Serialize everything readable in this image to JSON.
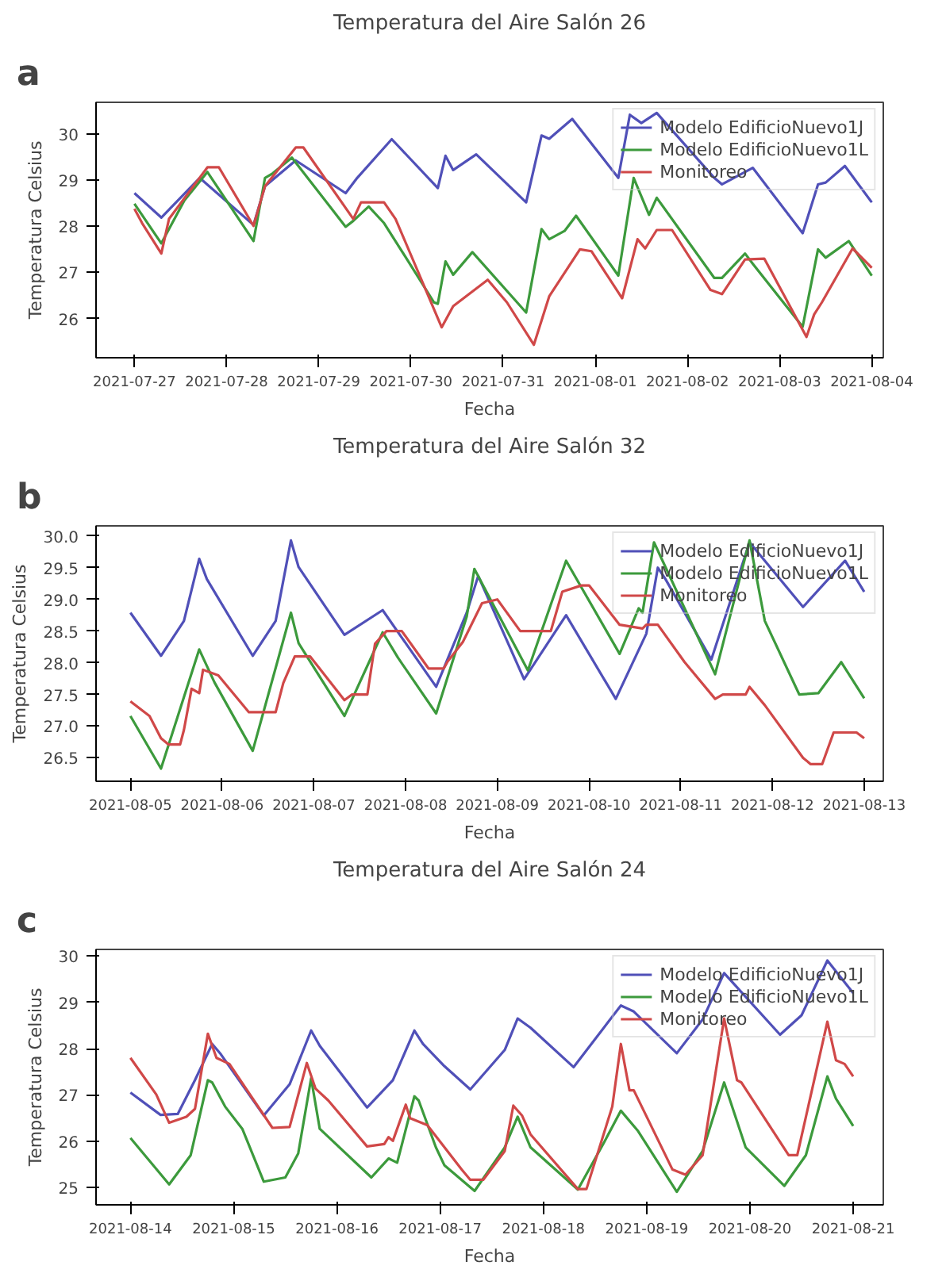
{
  "chart_data": [
    {
      "type": "line",
      "title": "Temperatura del Aire Salón 26",
      "xlabel": "Fecha",
      "ylabel": "Temperatura Celsius",
      "annotations": [
        "a"
      ],
      "legend": "top right",
      "grid": false,
      "xlim": [
        "2021-07-26T14:00",
        "2021-08-04T03:00"
      ],
      "xticks": [
        "2021-07-27",
        "2021-07-28",
        "2021-07-29",
        "2021-07-30",
        "2021-07-31",
        "2021-08-01",
        "2021-08-02",
        "2021-08-03",
        "2021-08-04"
      ],
      "ylim": [
        25.15,
        30.69
      ],
      "yticks": [
        26,
        27,
        28,
        29,
        30
      ],
      "series": [
        {
          "name": "Modelo EdificioNuevo1J",
          "color": "#5050b8",
          "x": [
            "2021-07-27T00:00",
            "2021-07-27T07:00",
            "2021-07-27T17:00",
            "2021-07-28T07:00",
            "2021-07-28T10:00",
            "2021-07-28T18:00",
            "2021-07-29T07:00",
            "2021-07-29T10:00",
            "2021-07-29T19:00",
            "2021-07-30T07:00",
            "2021-07-30T09:00",
            "2021-07-30T11:00",
            "2021-07-30T17:00",
            "2021-07-31T06:00",
            "2021-07-31T10:00",
            "2021-07-31T12:00",
            "2021-07-31T18:00",
            "2021-08-01T06:00",
            "2021-08-01T09:00",
            "2021-08-01T12:00",
            "2021-08-01T16:00",
            "2021-08-02T07:00",
            "2021-08-02T09:00",
            "2021-08-02T17:00",
            "2021-08-03T06:00",
            "2021-08-03T10:00",
            "2021-08-03T12:00",
            "2021-08-03T17:00",
            "2021-08-04T00:00"
          ],
          "values": [
            28.72,
            28.19,
            29.05,
            28.03,
            28.87,
            29.43,
            28.72,
            29.05,
            29.89,
            28.83,
            29.53,
            29.22,
            29.56,
            28.52,
            29.97,
            29.9,
            30.33,
            29.05,
            30.42,
            30.24,
            30.46,
            29.05,
            28.91,
            29.27,
            27.85,
            28.91,
            28.95,
            29.31,
            28.52
          ]
        },
        {
          "name": "Modelo EdificioNuevo1L",
          "color": "#3c9a3c",
          "x": [
            "2021-07-27T00:00",
            "2021-07-27T07:00",
            "2021-07-27T13:00",
            "2021-07-27T19:00",
            "2021-07-28T07:00",
            "2021-07-28T10:00",
            "2021-07-28T12:00",
            "2021-07-28T17:00",
            "2021-07-29T07:00",
            "2021-07-29T09:00",
            "2021-07-29T13:00",
            "2021-07-29T17:00",
            "2021-07-29T23:00",
            "2021-07-30T06:00",
            "2021-07-30T07:00",
            "2021-07-30T09:00",
            "2021-07-30T11:00",
            "2021-07-30T16:00",
            "2021-07-31T06:00",
            "2021-07-31T10:00",
            "2021-07-31T12:00",
            "2021-07-31T16:00",
            "2021-07-31T19:00",
            "2021-08-01T06:00",
            "2021-08-01T10:00",
            "2021-08-01T14:00",
            "2021-08-01T16:00",
            "2021-08-02T07:00",
            "2021-08-02T09:00",
            "2021-08-02T15:00",
            "2021-08-02T17:00",
            "2021-08-03T06:00",
            "2021-08-03T10:00",
            "2021-08-03T12:00",
            "2021-08-03T18:00",
            "2021-08-04T00:00"
          ],
          "values": [
            28.49,
            27.63,
            28.56,
            29.18,
            27.68,
            29.05,
            29.15,
            29.49,
            27.99,
            28.12,
            28.43,
            28.07,
            27.28,
            26.35,
            26.32,
            27.24,
            26.95,
            27.44,
            26.13,
            27.94,
            27.72,
            27.9,
            28.23,
            26.93,
            29.05,
            28.25,
            28.62,
            26.88,
            26.88,
            27.41,
            27.19,
            25.82,
            27.5,
            27.32,
            27.68,
            26.93
          ]
        },
        {
          "name": "Monitoreo",
          "color": "#d04848",
          "x": [
            "2021-07-27T00:00",
            "2021-07-27T02:00",
            "2021-07-27T07:00",
            "2021-07-27T09:00",
            "2021-07-27T19:00",
            "2021-07-27T22:00",
            "2021-07-28T07:00",
            "2021-07-28T10:00",
            "2021-07-28T18:00",
            "2021-07-28T20:00",
            "2021-07-29T09:00",
            "2021-07-29T11:00",
            "2021-07-29T17:00",
            "2021-07-29T20:00",
            "2021-07-30T08:00",
            "2021-07-30T11:00",
            "2021-07-30T20:00",
            "2021-07-31T01:00",
            "2021-07-31T08:00",
            "2021-07-31T12:00",
            "2021-07-31T20:00",
            "2021-07-31T23:00",
            "2021-08-01T07:00",
            "2021-08-01T11:00",
            "2021-08-01T13:00",
            "2021-08-01T16:00",
            "2021-08-01T20:00",
            "2021-08-02T06:00",
            "2021-08-02T09:00",
            "2021-08-02T15:00",
            "2021-08-02T20:00",
            "2021-08-03T07:00",
            "2021-08-03T09:00",
            "2021-08-03T11:00",
            "2021-08-03T19:00",
            "2021-08-04T00:00"
          ],
          "values": [
            28.38,
            28.07,
            27.41,
            28.16,
            29.28,
            29.28,
            28.01,
            28.87,
            29.71,
            29.71,
            28.16,
            28.52,
            28.52,
            28.16,
            25.81,
            26.27,
            26.84,
            26.35,
            25.43,
            26.48,
            27.5,
            27.46,
            26.44,
            27.72,
            27.52,
            27.92,
            27.92,
            26.62,
            26.53,
            27.28,
            27.3,
            25.6,
            26.09,
            26.35,
            27.52,
            27.1
          ]
        }
      ]
    },
    {
      "type": "line",
      "title": "Temperatura del Aire Salón 32",
      "xlabel": "Fecha",
      "ylabel": "Temperatura Celsius",
      "annotations": [
        "b"
      ],
      "legend": "top right",
      "grid": false,
      "xlim": [
        "2021-08-04T15:00",
        "2021-08-13T05:00"
      ],
      "xticks": [
        "2021-08-05",
        "2021-08-06",
        "2021-08-07",
        "2021-08-08",
        "2021-08-09",
        "2021-08-10",
        "2021-08-11",
        "2021-08-12",
        "2021-08-13"
      ],
      "ylim": [
        26.13,
        30.16
      ],
      "yticks": [
        26.5,
        {
          "value": 27,
          "label": "27.0"
        },
        27.5,
        {
          "value": 28,
          "label": "28.0"
        },
        28.5,
        {
          "value": 29,
          "label": "29.0"
        },
        29.5,
        {
          "value": 30,
          "label": "30.0"
        }
      ],
      "series": [
        {
          "name": "Modelo EdificioNuevo1J",
          "color": "#5050b8",
          "x": [
            "2021-08-05T00:00",
            "2021-08-05T08:00",
            "2021-08-05T14:00",
            "2021-08-05T18:00",
            "2021-08-05T20:00",
            "2021-08-06T08:00",
            "2021-08-06T14:00",
            "2021-08-06T18:00",
            "2021-08-06T20:00",
            "2021-08-07T08:00",
            "2021-08-07T18:00",
            "2021-08-08T08:00",
            "2021-08-08T16:00",
            "2021-08-08T19:00",
            "2021-08-09T07:00",
            "2021-08-09T18:00",
            "2021-08-10T07:00",
            "2021-08-10T15:00",
            "2021-08-10T18:00",
            "2021-08-10T20:00",
            "2021-08-11T08:00",
            "2021-08-11T18:00",
            "2021-08-12T08:00",
            "2021-08-12T19:00",
            "2021-08-13T00:00"
          ],
          "values": [
            28.79,
            28.11,
            28.66,
            29.64,
            29.32,
            28.11,
            28.66,
            29.93,
            29.51,
            28.44,
            28.83,
            27.62,
            28.79,
            29.37,
            27.74,
            28.75,
            27.43,
            28.46,
            29.5,
            29.32,
            28.05,
            29.9,
            28.88,
            29.61,
            29.12
          ]
        },
        {
          "name": "Modelo EdificioNuevo1L",
          "color": "#3c9a3c",
          "x": [
            "2021-08-05T00:00",
            "2021-08-05T08:00",
            "2021-08-05T18:00",
            "2021-08-05T22:00",
            "2021-08-06T08:00",
            "2021-08-06T18:00",
            "2021-08-06T20:00",
            "2021-08-07T08:00",
            "2021-08-07T18:00",
            "2021-08-07T22:00",
            "2021-08-08T08:00",
            "2021-08-08T16:00",
            "2021-08-08T18:00",
            "2021-08-09T08:00",
            "2021-08-09T18:00",
            "2021-08-10T08:00",
            "2021-08-10T13:00",
            "2021-08-10T14:00",
            "2021-08-10T17:00",
            "2021-08-11T09:00",
            "2021-08-11T18:00",
            "2021-08-11T22:00",
            "2021-08-12T07:00",
            "2021-08-12T12:00",
            "2021-08-12T18:00",
            "2021-08-13T00:00"
          ],
          "values": [
            27.16,
            26.33,
            28.21,
            27.69,
            26.61,
            28.79,
            28.31,
            27.16,
            28.48,
            28.08,
            27.2,
            28.73,
            29.48,
            27.88,
            29.61,
            28.14,
            28.86,
            28.79,
            29.9,
            27.82,
            29.93,
            28.66,
            27.5,
            27.52,
            28.01,
            27.44
          ]
        },
        {
          "name": "Monitoreo",
          "color": "#d04848",
          "x": [
            "2021-08-05T00:00",
            "2021-08-05T05:00",
            "2021-08-05T08:00",
            "2021-08-05T10:00",
            "2021-08-05T13:00",
            "2021-08-05T14:00",
            "2021-08-05T16:00",
            "2021-08-05T18:00",
            "2021-08-05T19:00",
            "2021-08-05T23:00",
            "2021-08-06T07:00",
            "2021-08-06T14:00",
            "2021-08-06T16:00",
            "2021-08-06T19:00",
            "2021-08-06T23:00",
            "2021-08-07T08:00",
            "2021-08-07T10:00",
            "2021-08-07T14:00",
            "2021-08-07T16:00",
            "2021-08-07T19:00",
            "2021-08-07T23:00",
            "2021-08-08T06:00",
            "2021-08-08T10:00",
            "2021-08-08T11:00",
            "2021-08-08T15:00",
            "2021-08-08T20:00",
            "2021-08-09T00:00",
            "2021-08-09T06:00",
            "2021-08-09T14:00",
            "2021-08-09T17:00",
            "2021-08-09T22:00",
            "2021-08-10T00:00",
            "2021-08-10T08:00",
            "2021-08-10T14:00",
            "2021-08-10T15:00",
            "2021-08-10T18:00",
            "2021-08-11T01:00",
            "2021-08-11T09:00",
            "2021-08-11T11:00",
            "2021-08-11T17:00",
            "2021-08-11T18:00",
            "2021-08-11T22:00",
            "2021-08-12T08:00",
            "2021-08-12T10:00",
            "2021-08-12T13:00",
            "2021-08-12T16:00",
            "2021-08-12T22:00",
            "2021-08-13T00:00"
          ],
          "values": [
            27.39,
            27.16,
            26.81,
            26.71,
            26.71,
            26.94,
            27.59,
            27.52,
            27.89,
            27.8,
            27.22,
            27.22,
            27.68,
            28.1,
            28.1,
            27.41,
            27.5,
            27.5,
            28.3,
            28.5,
            28.5,
            27.91,
            27.91,
            28.02,
            28.33,
            28.94,
            29.0,
            28.5,
            28.5,
            29.12,
            29.22,
            29.22,
            28.6,
            28.54,
            28.6,
            28.6,
            28.01,
            27.43,
            27.5,
            27.5,
            27.62,
            27.33,
            26.5,
            26.4,
            26.4,
            26.9,
            26.9,
            26.81
          ]
        }
      ]
    },
    {
      "type": "line",
      "title": "Temperatura del Aire Salón 24",
      "xlabel": "Fecha",
      "ylabel": "Temperatura Celsius",
      "annotations": [
        "c"
      ],
      "legend": "top right",
      "grid": false,
      "xlim": [
        "2021-08-13T16:00",
        "2021-08-21T07:00"
      ],
      "xticks": [
        "2021-08-14",
        "2021-08-15",
        "2021-08-16",
        "2021-08-17",
        "2021-08-18",
        "2021-08-19",
        "2021-08-20",
        "2021-08-21"
      ],
      "ylim": [
        24.63,
        30.14
      ],
      "yticks": [
        25,
        26,
        27,
        28,
        29,
        30
      ],
      "series": [
        {
          "name": "Modelo EdificioNuevo1J",
          "color": "#5050b8",
          "x": [
            "2021-08-14T00:00",
            "2021-08-14T07:00",
            "2021-08-14T11:00",
            "2021-08-14T15:00",
            "2021-08-14T19:00",
            "2021-08-14T21:00",
            "2021-08-15T07:00",
            "2021-08-15T13:00",
            "2021-08-15T18:00",
            "2021-08-15T20:00",
            "2021-08-16T07:00",
            "2021-08-16T13:00",
            "2021-08-16T18:00",
            "2021-08-16T20:00",
            "2021-08-17T01:00",
            "2021-08-17T07:00",
            "2021-08-17T15:00",
            "2021-08-17T18:00",
            "2021-08-17T21:00",
            "2021-08-18T07:00",
            "2021-08-18T18:00",
            "2021-08-18T21:00",
            "2021-08-19T07:00",
            "2021-08-19T13:00",
            "2021-08-19T18:00",
            "2021-08-20T07:00",
            "2021-08-20T12:00",
            "2021-08-20T18:00",
            "2021-08-21T00:00"
          ],
          "values": [
            27.05,
            26.57,
            26.59,
            27.32,
            28.1,
            27.88,
            26.56,
            27.23,
            28.39,
            28.06,
            26.73,
            27.32,
            28.39,
            28.1,
            27.62,
            27.12,
            27.97,
            28.65,
            28.45,
            27.6,
            28.93,
            28.8,
            27.9,
            28.63,
            29.63,
            28.3,
            28.72,
            29.9,
            29.2
          ]
        },
        {
          "name": "Modelo EdificioNuevo1L",
          "color": "#3c9a3c",
          "x": [
            "2021-08-14T00:00",
            "2021-08-14T09:00",
            "2021-08-14T14:00",
            "2021-08-14T18:00",
            "2021-08-14T19:00",
            "2021-08-14T22:00",
            "2021-08-15T02:00",
            "2021-08-15T07:00",
            "2021-08-15T12:00",
            "2021-08-15T15:00",
            "2021-08-15T18:00",
            "2021-08-15T20:00",
            "2021-08-16T08:00",
            "2021-08-16T12:00",
            "2021-08-16T14:00",
            "2021-08-16T18:00",
            "2021-08-16T19:00",
            "2021-08-16T23:00",
            "2021-08-17T01:00",
            "2021-08-17T08:00",
            "2021-08-17T15:00",
            "2021-08-17T18:00",
            "2021-08-17T21:00",
            "2021-08-18T08:00",
            "2021-08-18T14:00",
            "2021-08-18T18:00",
            "2021-08-18T22:00",
            "2021-08-19T07:00",
            "2021-08-19T13:00",
            "2021-08-19T18:00",
            "2021-08-19T23:00",
            "2021-08-20T08:00",
            "2021-08-20T13:00",
            "2021-08-20T18:00",
            "2021-08-20T20:00",
            "2021-08-21T00:00"
          ],
          "values": [
            26.07,
            25.07,
            25.7,
            27.32,
            27.27,
            26.75,
            26.27,
            25.13,
            25.22,
            25.74,
            27.36,
            26.27,
            25.22,
            25.63,
            25.54,
            26.97,
            26.88,
            25.87,
            25.48,
            24.93,
            25.87,
            26.53,
            25.87,
            24.96,
            25.96,
            26.66,
            26.22,
            24.91,
            25.79,
            27.27,
            25.87,
            25.04,
            25.7,
            27.4,
            26.92,
            26.33
          ]
        },
        {
          "name": "Monitoreo",
          "color": "#d04848",
          "x": [
            "2021-08-14T00:00",
            "2021-08-14T06:00",
            "2021-08-14T09:00",
            "2021-08-14T13:00",
            "2021-08-14T15:00",
            "2021-08-14T18:00",
            "2021-08-14T20:00",
            "2021-08-14T23:00",
            "2021-08-15T09:00",
            "2021-08-15T13:00",
            "2021-08-15T17:00",
            "2021-08-15T19:00",
            "2021-08-15T22:00",
            "2021-08-16T07:00",
            "2021-08-16T11:00",
            "2021-08-16T12:00",
            "2021-08-16T13:00",
            "2021-08-16T16:00",
            "2021-08-16T17:00",
            "2021-08-16T21:00",
            "2021-08-17T05:00",
            "2021-08-17T07:00",
            "2021-08-17T10:00",
            "2021-08-17T15:00",
            "2021-08-17T17:00",
            "2021-08-17T19:00",
            "2021-08-17T21:00",
            "2021-08-18T08:00",
            "2021-08-18T10:00",
            "2021-08-18T16:00",
            "2021-08-18T18:00",
            "2021-08-18T20:00",
            "2021-08-18T21:00",
            "2021-08-19T06:00",
            "2021-08-19T09:00",
            "2021-08-19T13:00",
            "2021-08-19T18:00",
            "2021-08-19T21:00",
            "2021-08-19T22:00",
            "2021-08-20T09:00",
            "2021-08-20T11:00",
            "2021-08-20T18:00",
            "2021-08-20T20:00",
            "2021-08-20T22:00",
            "2021-08-21T00:00"
          ],
          "values": [
            27.8,
            27.01,
            26.4,
            26.53,
            26.7,
            28.32,
            27.8,
            27.67,
            26.29,
            26.31,
            27.69,
            27.14,
            26.88,
            25.89,
            25.94,
            26.09,
            26.01,
            26.79,
            26.5,
            26.35,
            25.39,
            25.17,
            25.17,
            25.79,
            26.77,
            26.56,
            26.15,
            24.97,
            24.97,
            26.75,
            28.1,
            27.1,
            27.1,
            25.39,
            25.28,
            25.7,
            28.65,
            27.32,
            27.27,
            25.7,
            25.7,
            28.58,
            27.75,
            27.67,
            27.4
          ]
        }
      ]
    }
  ]
}
